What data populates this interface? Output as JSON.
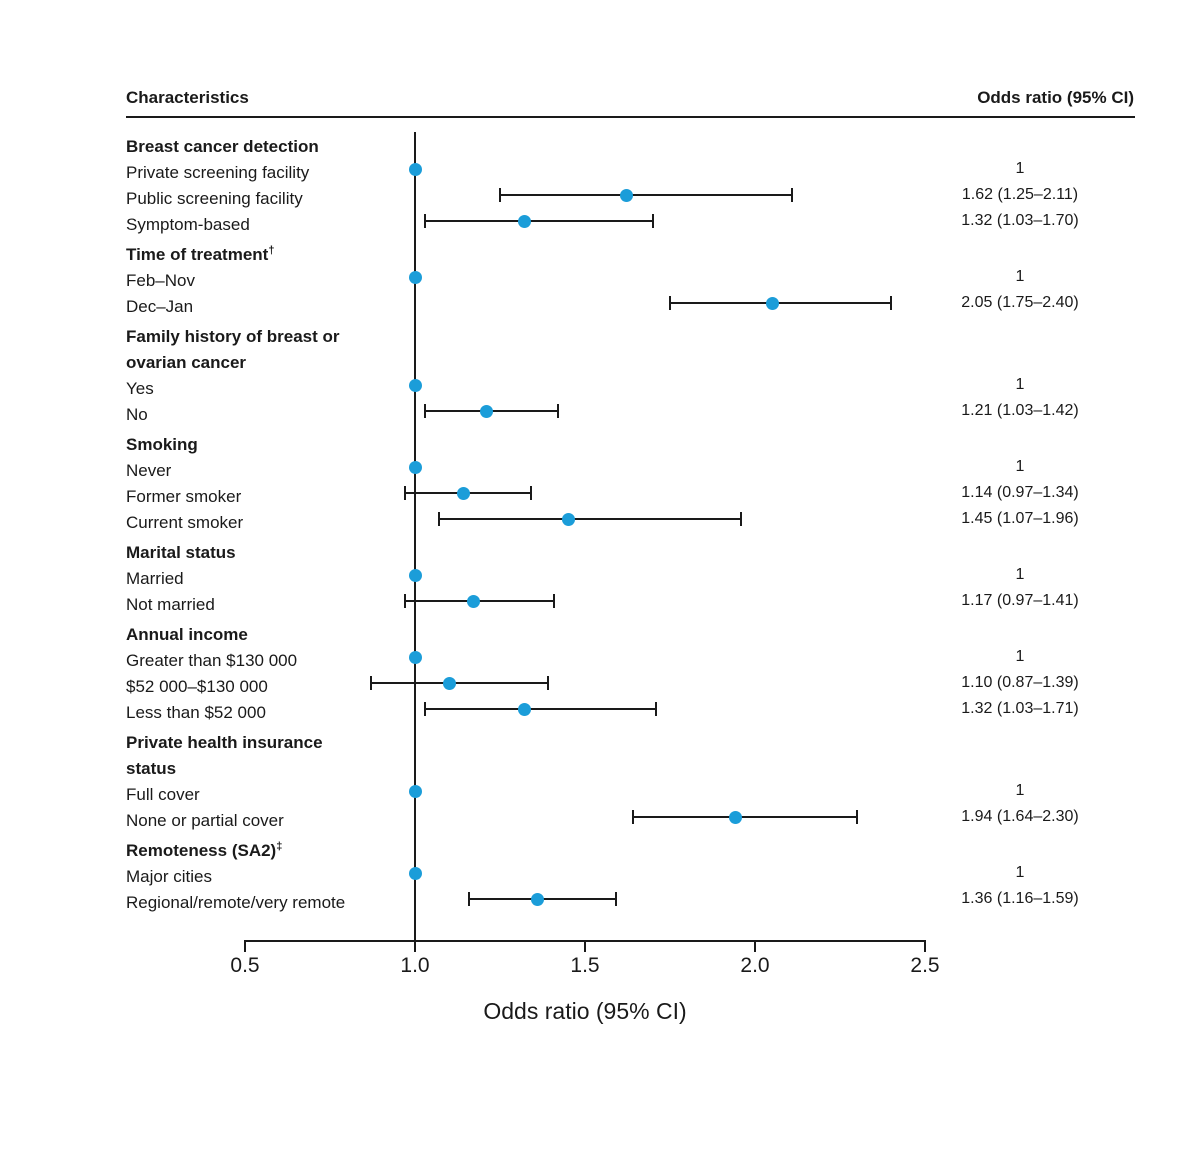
{
  "header": {
    "characteristics": "Characteristics",
    "odds_ratio": "Odds ratio (95% CI)"
  },
  "axis": {
    "label": "Odds ratio (95% CI)",
    "min": 0.5,
    "max": 2.5,
    "reference_value": 1.0,
    "ticks": [
      {
        "value": 0.5,
        "label": "0.5"
      },
      {
        "value": 1.0,
        "label": "1.0"
      },
      {
        "value": 1.5,
        "label": "1.5"
      },
      {
        "value": 2.0,
        "label": "2.0"
      },
      {
        "value": 2.5,
        "label": "2.5"
      }
    ]
  },
  "colors": {
    "dot": "#1b9dd9",
    "line": "#1a1a1a",
    "text": "#1a1a1a"
  },
  "chart_data": {
    "type": "forest",
    "title": "",
    "xlabel": "Odds ratio (95% CI)",
    "xlim": [
      0.5,
      2.5
    ],
    "reference_line": 1.0,
    "legend": null,
    "grid": false,
    "groups": [
      {
        "header_lines": [
          "Breast cancer detection"
        ],
        "rows": [
          {
            "label": "Private screening facility",
            "or": 1,
            "ci_low": null,
            "ci_high": null,
            "or_text": "1"
          },
          {
            "label": "Public screening facility",
            "or": 1.62,
            "ci_low": 1.25,
            "ci_high": 2.11,
            "or_text": "1.62 (1.25–2.11)"
          },
          {
            "label": "Symptom-based",
            "or": 1.32,
            "ci_low": 1.03,
            "ci_high": 1.7,
            "or_text": "1.32 (1.03–1.70)"
          }
        ]
      },
      {
        "header_lines": [
          "Time of treatment"
        ],
        "header_sup": "†",
        "rows": [
          {
            "label": "Feb–Nov",
            "or": 1,
            "ci_low": null,
            "ci_high": null,
            "or_text": "1"
          },
          {
            "label": "Dec–Jan",
            "or": 2.05,
            "ci_low": 1.75,
            "ci_high": 2.4,
            "or_text": "2.05 (1.75–2.40)"
          }
        ]
      },
      {
        "header_lines": [
          "Family history of breast or",
          "ovarian cancer"
        ],
        "rows": [
          {
            "label": "Yes",
            "or": 1,
            "ci_low": null,
            "ci_high": null,
            "or_text": "1"
          },
          {
            "label": "No",
            "or": 1.21,
            "ci_low": 1.03,
            "ci_high": 1.42,
            "or_text": "1.21 (1.03–1.42)"
          }
        ]
      },
      {
        "header_lines": [
          "Smoking"
        ],
        "rows": [
          {
            "label": "Never",
            "or": 1,
            "ci_low": null,
            "ci_high": null,
            "or_text": "1"
          },
          {
            "label": "Former smoker",
            "or": 1.14,
            "ci_low": 0.97,
            "ci_high": 1.34,
            "or_text": "1.14 (0.97–1.34)"
          },
          {
            "label": "Current smoker",
            "or": 1.45,
            "ci_low": 1.07,
            "ci_high": 1.96,
            "or_text": "1.45 (1.07–1.96)"
          }
        ]
      },
      {
        "header_lines": [
          "Marital status"
        ],
        "rows": [
          {
            "label": "Married",
            "or": 1,
            "ci_low": null,
            "ci_high": null,
            "or_text": "1"
          },
          {
            "label": "Not married",
            "or": 1.17,
            "ci_low": 0.97,
            "ci_high": 1.41,
            "or_text": "1.17 (0.97–1.41)"
          }
        ]
      },
      {
        "header_lines": [
          "Annual income"
        ],
        "rows": [
          {
            "label": "Greater than $130 000",
            "or": 1,
            "ci_low": null,
            "ci_high": null,
            "or_text": "1"
          },
          {
            "label": "$52 000–$130 000",
            "or": 1.1,
            "ci_low": 0.87,
            "ci_high": 1.39,
            "or_text": "1.10 (0.87–1.39)"
          },
          {
            "label": "Less than $52 000",
            "or": 1.32,
            "ci_low": 1.03,
            "ci_high": 1.71,
            "or_text": "1.32 (1.03–1.71)"
          }
        ]
      },
      {
        "header_lines": [
          "Private health insurance",
          "status"
        ],
        "rows": [
          {
            "label": "Full cover",
            "or": 1,
            "ci_low": null,
            "ci_high": null,
            "or_text": "1"
          },
          {
            "label": "None or partial cover",
            "or": 1.94,
            "ci_low": 1.64,
            "ci_high": 2.3,
            "or_text": "1.94 (1.64–2.30)"
          }
        ]
      },
      {
        "header_lines": [
          "Remoteness (SA2)"
        ],
        "header_sup": "‡",
        "rows": [
          {
            "label": "Major cities",
            "or": 1,
            "ci_low": null,
            "ci_high": null,
            "or_text": "1"
          },
          {
            "label": "Regional/remote/very remote",
            "or": 1.36,
            "ci_low": 1.16,
            "ci_high": 1.59,
            "or_text": "1.36 (1.16–1.59)"
          }
        ]
      }
    ]
  }
}
